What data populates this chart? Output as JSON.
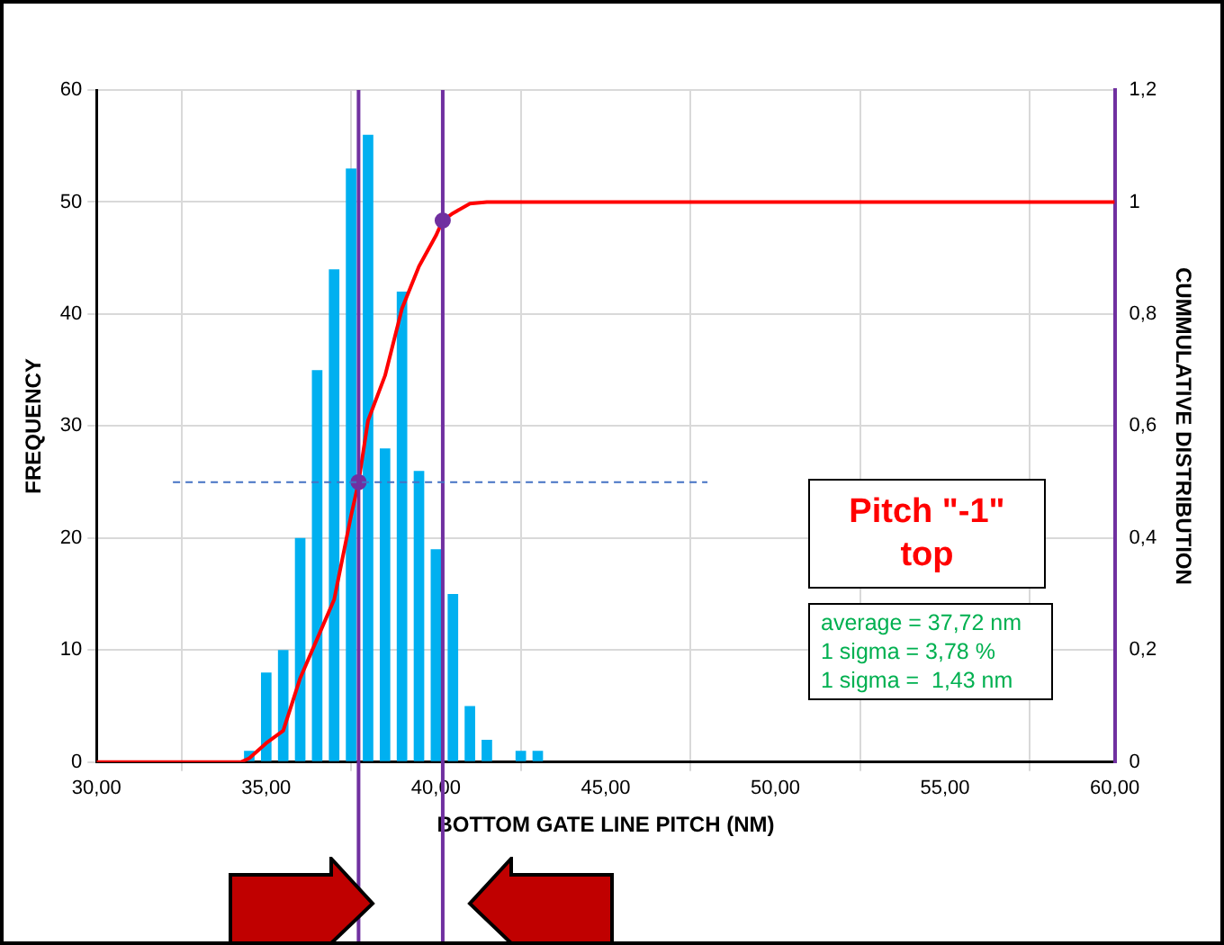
{
  "chart_data": {
    "type": "histogram",
    "xlabel": "BOTTOM GATE LINE PITCH (NM)",
    "ylabel": "FREQUENCY",
    "y2label": "CUMMULATIVE DISTRIBUTION",
    "bins": [
      34.25,
      34.75,
      35.25,
      35.75,
      36.25,
      36.75,
      37.25,
      37.75,
      38.25,
      38.75,
      39.25,
      39.75,
      40.25,
      40.75,
      41.25,
      41.75,
      42.25,
      42.75,
      43.25
    ],
    "values": [
      1,
      8,
      10,
      20,
      35,
      44,
      53,
      56,
      28,
      42,
      26,
      19,
      15,
      5,
      2,
      0,
      1,
      1
    ],
    "color": "#00b0f0",
    "series": [
      {
        "type": "line",
        "color": "#ff0000",
        "axis": "y2",
        "marker": "none",
        "x": [
          30,
          34.25,
          34.5,
          35,
          35.5,
          36,
          36.5,
          37,
          37.5,
          37.72,
          38,
          38.5,
          39,
          39.5,
          40,
          40.2,
          40.5,
          41,
          41.5,
          42,
          60
        ],
        "values": [
          0,
          0,
          0.007,
          0.034,
          0.056,
          0.15,
          0.22,
          0.29,
          0.44,
          0.5,
          0.61,
          0.69,
          0.81,
          0.885,
          0.94,
          0.967,
          0.98,
          0.997,
          1,
          1,
          1
        ]
      },
      {
        "type": "scatter",
        "color": "#7030a0",
        "axis": "y2",
        "marker": "circle",
        "x": [
          37.72,
          40.2
        ],
        "values": [
          0.5,
          0.967
        ]
      }
    ],
    "xlim": [
      30,
      60
    ],
    "xticks": [
      {
        "value": 30,
        "label": "30,00"
      },
      {
        "value": 35,
        "label": "35,00"
      },
      {
        "value": 40,
        "label": "40,00"
      },
      {
        "value": 45,
        "label": "45,00"
      },
      {
        "value": 50,
        "label": "50,00"
      },
      {
        "value": 55,
        "label": "55,00"
      },
      {
        "value": 60,
        "label": "60,00"
      }
    ],
    "ylim": [
      0,
      60
    ],
    "yticks": [
      0,
      10,
      20,
      30,
      40,
      50,
      60
    ],
    "y2lim": [
      0,
      1.2
    ],
    "y2ticks": [
      0,
      {
        "value": 0.2,
        "label": "0,2"
      },
      {
        "value": 0.4,
        "label": "0,4"
      },
      {
        "value": 0.6,
        "label": "0,6"
      },
      {
        "value": 0.8,
        "label": "0,8"
      },
      1,
      {
        "value": 1.2,
        "label": "1,2"
      }
    ],
    "ref_lines": [
      {
        "axis": "x",
        "value": 37.72,
        "color": "#7030a0",
        "line_style": "solid"
      },
      {
        "axis": "x",
        "value": 40.2,
        "color": "#7030a0",
        "line_style": "solid"
      },
      {
        "axis": "y2",
        "value": 0.5,
        "color": "#4472c4",
        "line_style": "dashed"
      }
    ],
    "annotations": [
      "Pitch \"-1\" top",
      "average = 37,72 nm",
      "1 sigma = 3,78 %",
      "1 sigma =  1,43 nm"
    ],
    "grid": true,
    "legend": false
  }
}
